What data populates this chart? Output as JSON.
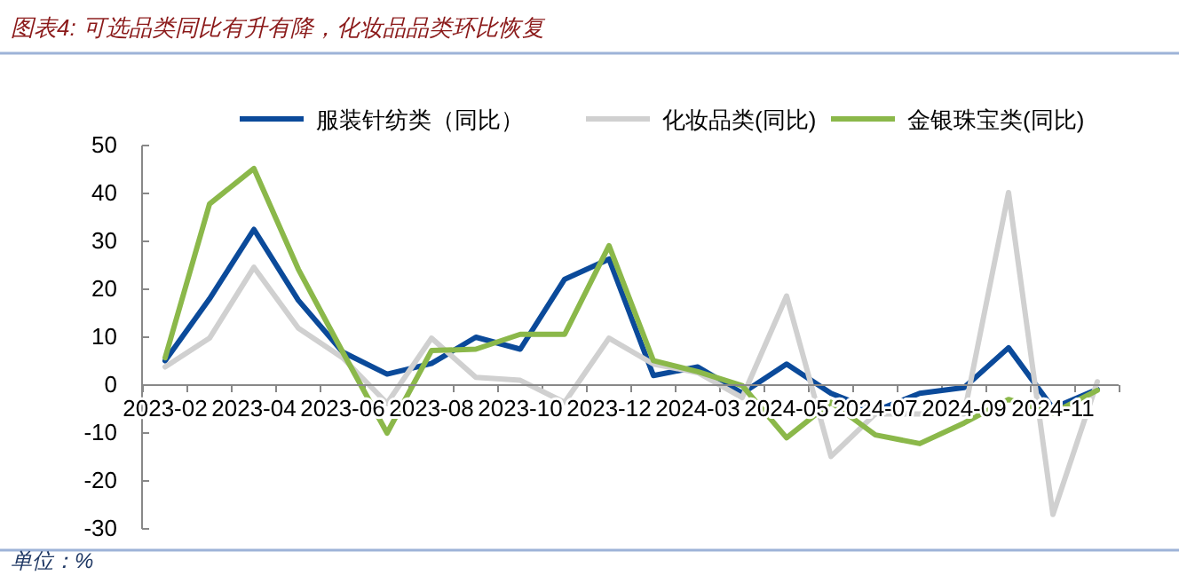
{
  "chart_data": {
    "type": "line",
    "title": "图表4: 可选品类同比有升有降，化妆品品类环比恢复",
    "categories": [
      "2023-02",
      null,
      "2023-04",
      null,
      "2023-06",
      null,
      "2023-08",
      null,
      "2023-10",
      null,
      "2023-12",
      null,
      "2024-03",
      null,
      "2024-05",
      null,
      "2024-07",
      null,
      "2024-09",
      null,
      "2024-11",
      null
    ],
    "series": [
      {
        "name": "服装针纺类（同比）",
        "color": "#0b4a9a",
        "values": [
          5.1,
          18,
          32.5,
          17.7,
          6.9,
          2.3,
          4.5,
          10,
          7.5,
          22.1,
          26.3,
          2,
          3.8,
          -1.7,
          4.4,
          -1.7,
          -5.4,
          -1.7,
          -0.5,
          7.8,
          -4.8,
          -0.9
        ]
      },
      {
        "name": "化妆品类(同比)",
        "color": "#d0d0d0",
        "values": [
          3.8,
          9.8,
          24.6,
          11.9,
          5.7,
          -3.8,
          9.8,
          1.6,
          1,
          -3.6,
          9.8,
          4.4,
          2.6,
          -2.6,
          18.6,
          -14.9,
          -6,
          -6,
          -6,
          40.2,
          -27,
          0.7
        ]
      },
      {
        "name": "金银珠宝类(同比)",
        "color": "#8bb84a",
        "values": [
          5.7,
          37.8,
          45.2,
          24.2,
          6.9,
          -10,
          7.2,
          7.5,
          10.6,
          10.6,
          29.1,
          5.1,
          2.8,
          -0.1,
          -11,
          -3.6,
          -10.4,
          -12.2,
          -7.9,
          -3,
          -5.8,
          -1.1
        ]
      }
    ],
    "ylim": [
      -30,
      50
    ],
    "yticks": [
      -30,
      -20,
      -10,
      0,
      10,
      20,
      30,
      40,
      50
    ],
    "grid": false,
    "legend": "top",
    "annotations": [
      "单位：%"
    ]
  }
}
